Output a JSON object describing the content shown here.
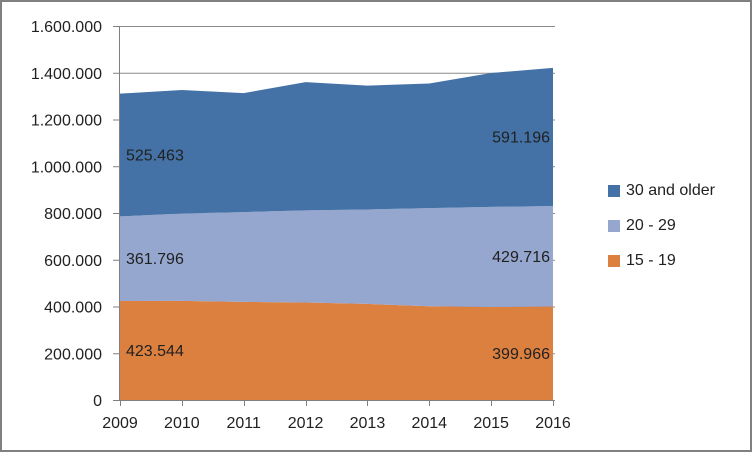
{
  "chart_data": {
    "type": "area",
    "stacked": true,
    "title": "",
    "xlabel": "",
    "ylabel": "",
    "x": [
      "2009",
      "2010",
      "2011",
      "2012",
      "2013",
      "2014",
      "2015",
      "2016"
    ],
    "series": [
      {
        "name": "15 - 19",
        "color": "#DC8040",
        "values": [
          423544,
          424000,
          420000,
          417000,
          411000,
          401000,
          398000,
          399966
        ]
      },
      {
        "name": "20 - 29",
        "color": "#95A6CF",
        "values": [
          361796,
          374000,
          384000,
          394000,
          404000,
          420000,
          428000,
          429716
        ]
      },
      {
        "name": "30 and older",
        "color": "#4472A6",
        "values": [
          525463,
          528000,
          509000,
          549000,
          530000,
          533000,
          573000,
          591196
        ]
      }
    ],
    "ylim": [
      0,
      1600000
    ],
    "ytick_step": 200000,
    "ytick_labels": [
      "0",
      "200.000",
      "400.000",
      "600.000",
      "800.000",
      "1.000.000",
      "1.200.000",
      "1.400.000",
      "1.600.000"
    ],
    "grid": true,
    "legend_position": "right",
    "legend_order_top_to_bottom": [
      "30 and older",
      "20 - 29",
      "15 - 19"
    ],
    "number_format": "thousands-dot",
    "data_labels": [
      {
        "series": "30 and older",
        "x": "2009",
        "text": "525.463",
        "align": "left"
      },
      {
        "series": "20 - 29",
        "x": "2009",
        "text": "361.796",
        "align": "left"
      },
      {
        "series": "15 - 19",
        "x": "2009",
        "text": "423.544",
        "align": "left"
      },
      {
        "series": "30 and older",
        "x": "2016",
        "text": "591.196",
        "align": "right"
      },
      {
        "series": "20 - 29",
        "x": "2016",
        "text": "429.716",
        "align": "right"
      },
      {
        "series": "15 - 19",
        "x": "2016",
        "text": "399.966",
        "align": "right"
      }
    ]
  },
  "colors": {
    "background": "#FFFFFF",
    "panel_border": "#808080",
    "gridline": "#8C8C8C",
    "axis": "#808080",
    "text": "#212121"
  }
}
